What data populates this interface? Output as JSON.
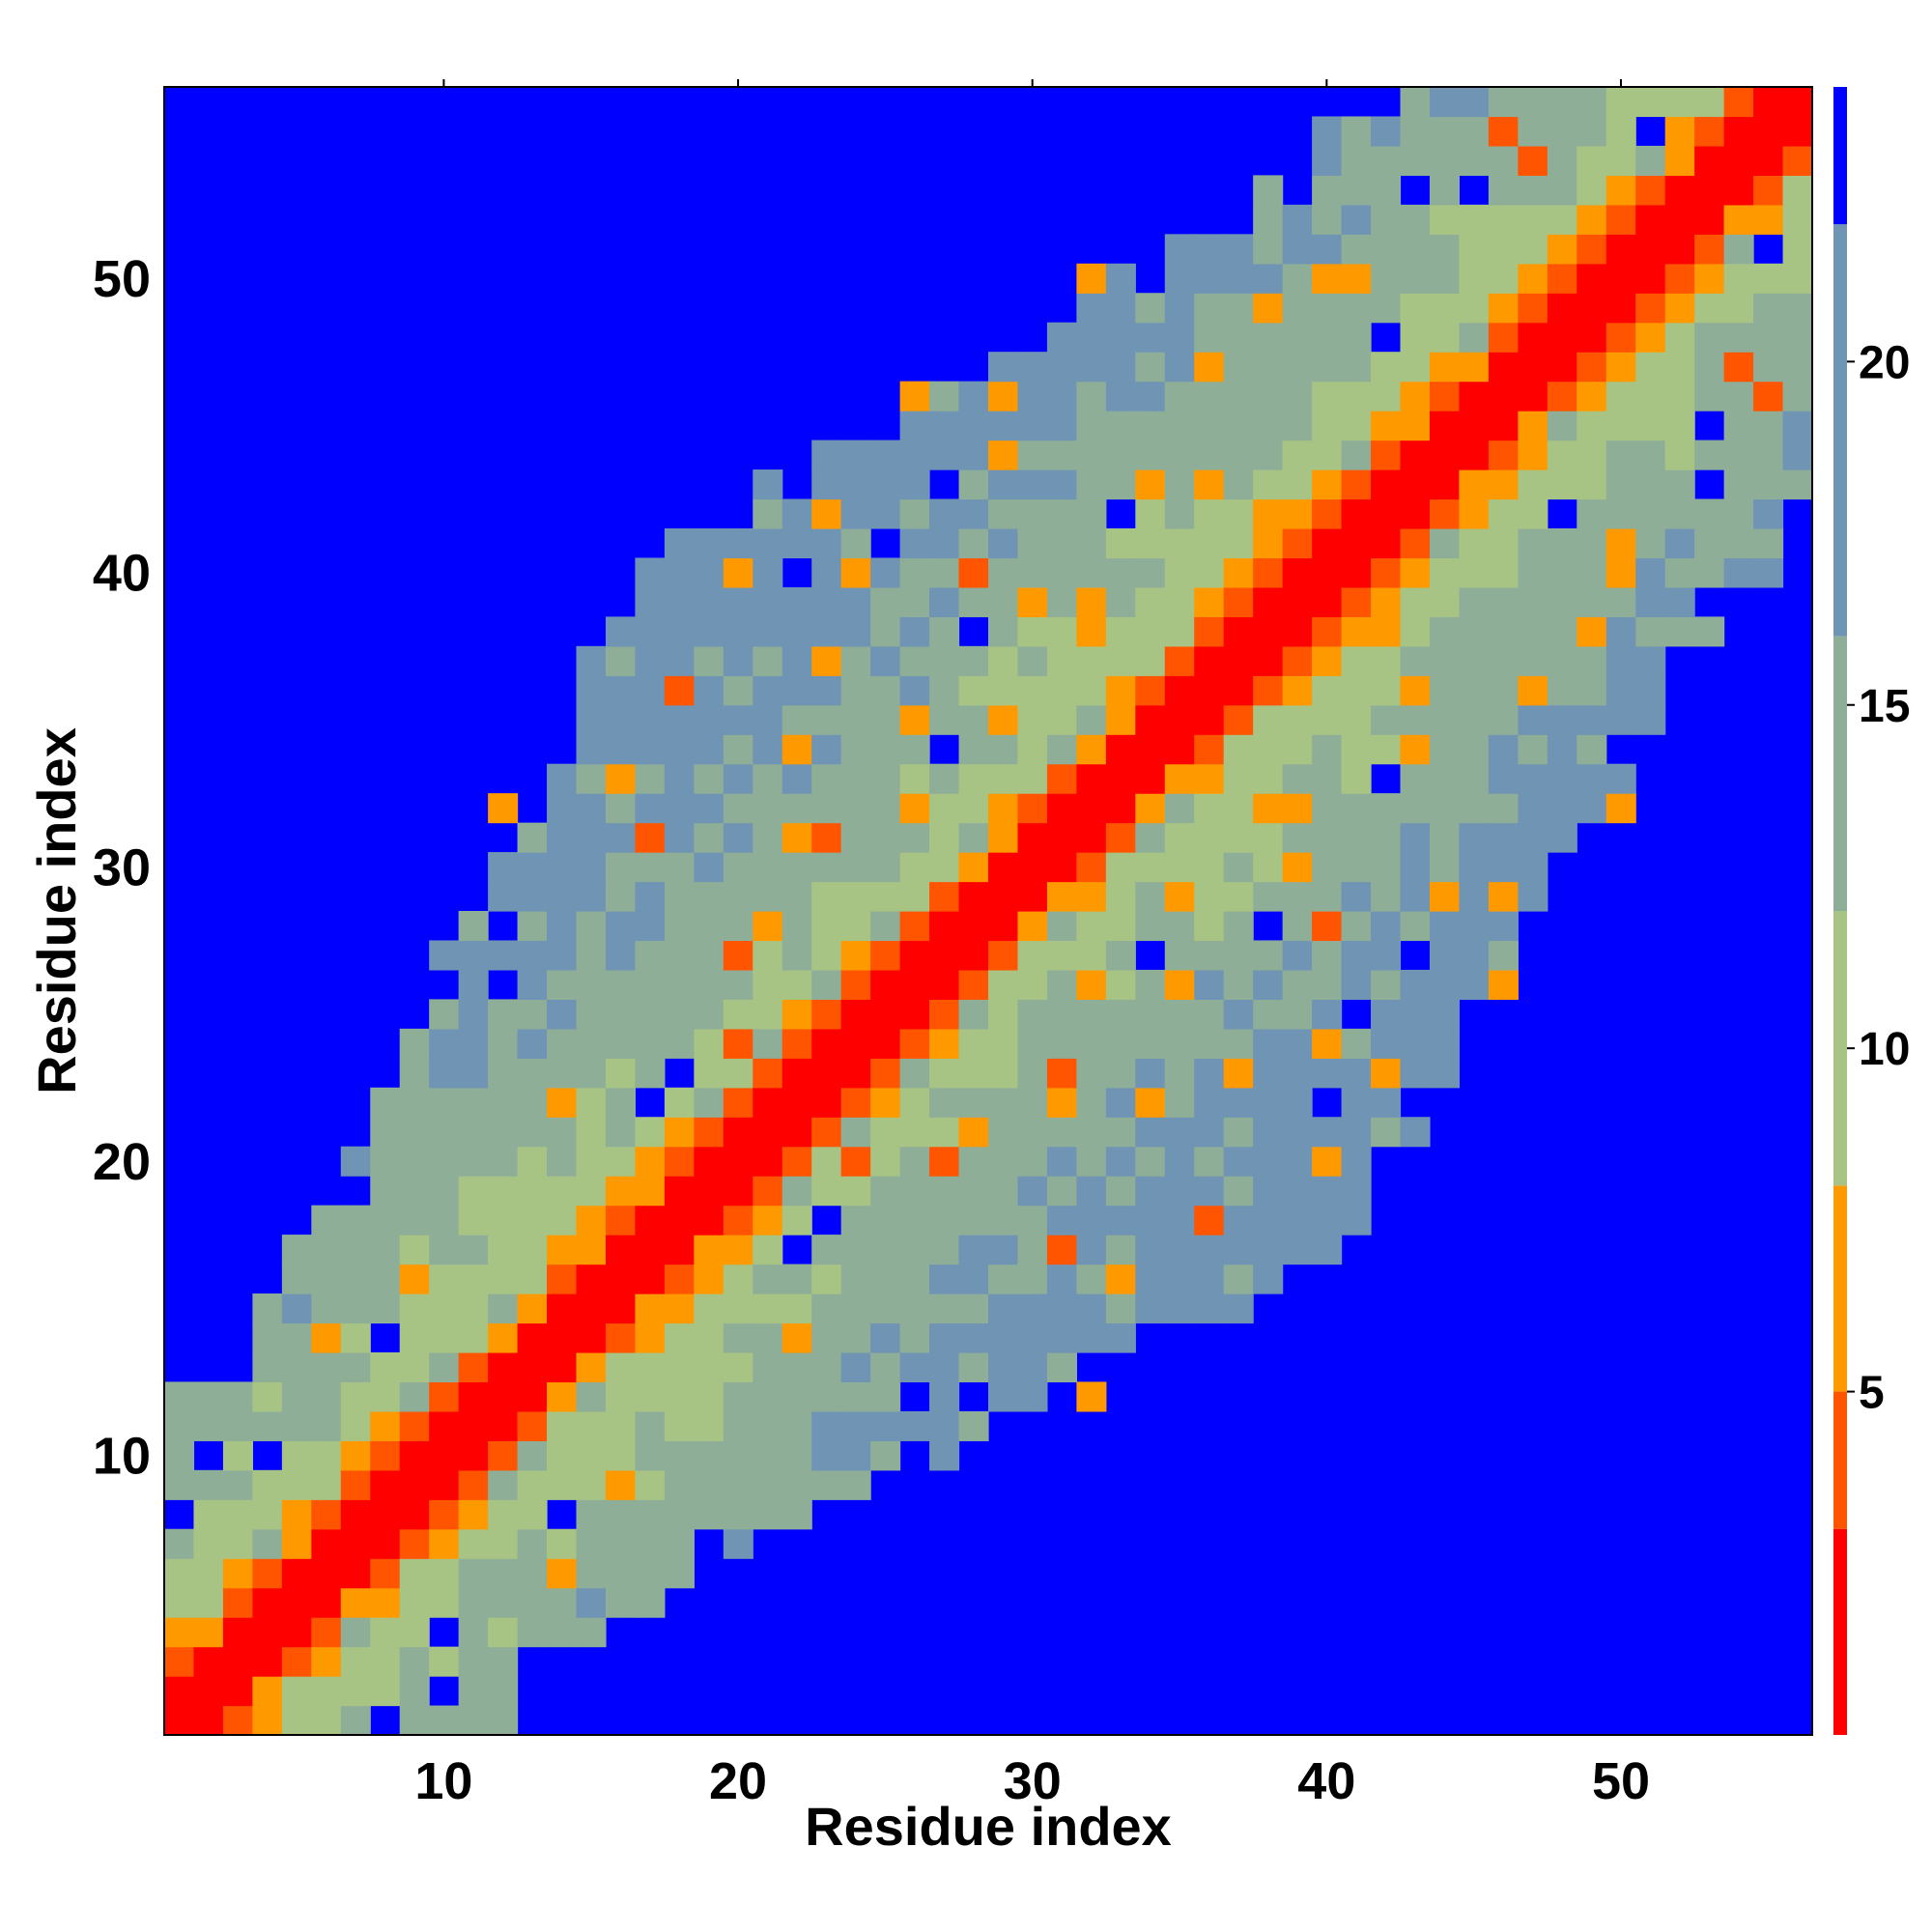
{
  "chart_data": {
    "type": "heatmap",
    "xlabel": "Residue index",
    "ylabel": "Residue index",
    "xlim": [
      0.5,
      56.5
    ],
    "ylim": [
      0.5,
      56.5
    ],
    "x_ticks": [
      10,
      20,
      30,
      40,
      50
    ],
    "y_ticks": [
      10,
      20,
      30,
      40,
      50
    ],
    "n_residues": 56,
    "color_scale": {
      "range": [
        0,
        24
      ],
      "ticks": [
        5,
        10,
        15,
        20
      ],
      "stops": [
        {
          "max": 3,
          "color": "#ff0000"
        },
        {
          "max": 5,
          "color": "#ff5500"
        },
        {
          "max": 8,
          "color": "#ff9900"
        },
        {
          "max": 12,
          "color": "#a8c484"
        },
        {
          "max": 16,
          "color": "#8fae98"
        },
        {
          "max": 22,
          "color": "#6f94b4"
        },
        {
          "max": 24,
          "color": "#0000ff"
        }
      ]
    },
    "description_rule": "Symmetric residue-residue distance map: values near 0 on the diagonal (red), increasing away from it; cells beyond the cutoff shown in blue.",
    "contact_bands": [
      {
        "offset": 0,
        "value": 1
      },
      {
        "offset": 1,
        "value": 2
      },
      {
        "offset": 2,
        "value": 5
      },
      {
        "offset": 3,
        "value": 7
      }
    ],
    "distance_rate": 0.55,
    "cutoff_profile": [
      {
        "i": 1,
        "limit": 10
      },
      {
        "i": 6,
        "limit": 12
      },
      {
        "i": 10,
        "limit": 17
      },
      {
        "i": 15,
        "limit": 22
      },
      {
        "i": 20,
        "limit": 26
      },
      {
        "i": 25,
        "limit": 28
      },
      {
        "i": 30,
        "limit": 27
      },
      {
        "i": 35,
        "limit": 25
      },
      {
        "i": 40,
        "limit": 23
      },
      {
        "i": 45,
        "limit": 20
      },
      {
        "i": 50,
        "limit": 17
      },
      {
        "i": 56,
        "limit": 14
      }
    ]
  }
}
